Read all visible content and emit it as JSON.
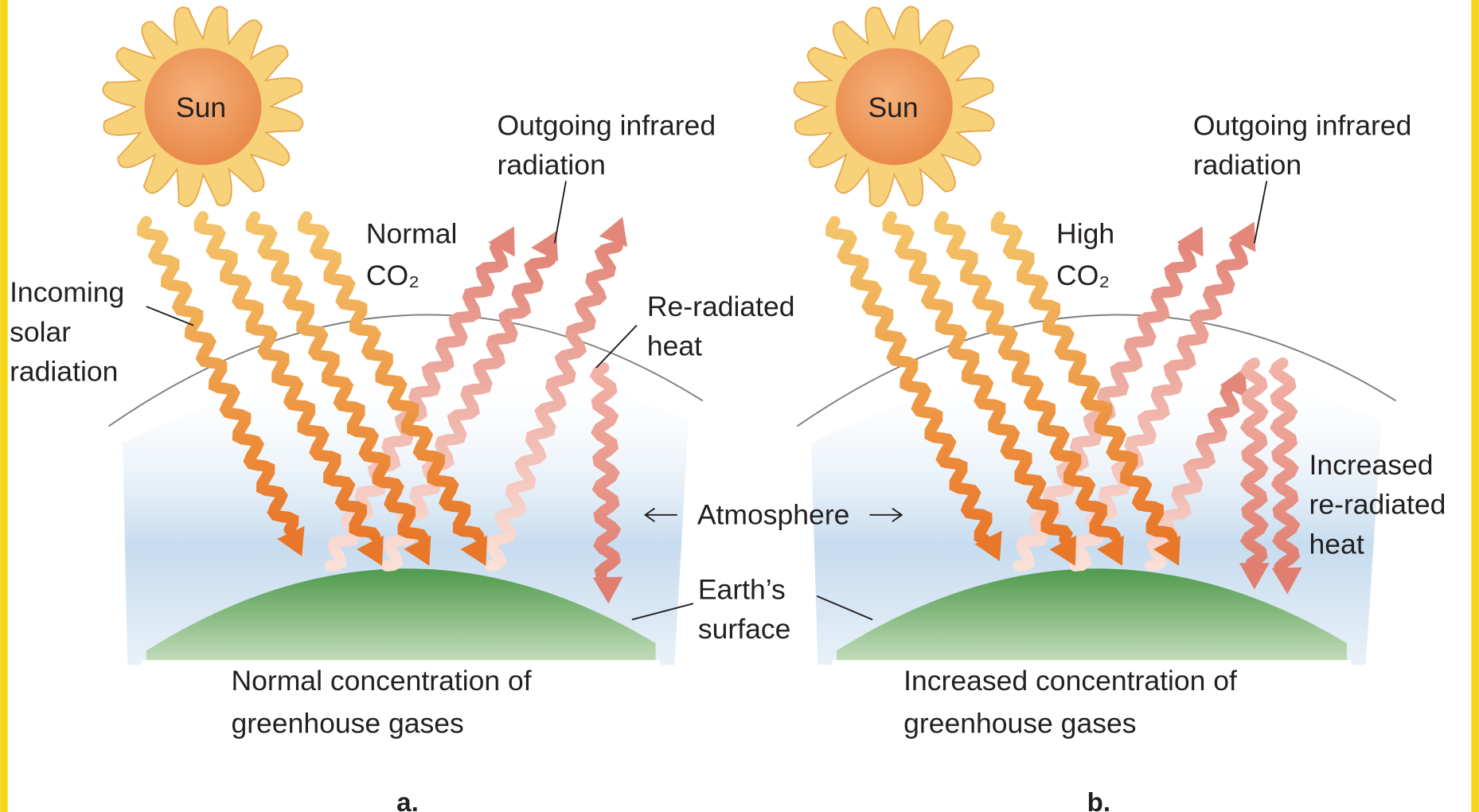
{
  "panels": [
    {
      "sun": "Sun",
      "outgoing": [
        "Outgoing infrared",
        "radiation"
      ],
      "co2": [
        "Normal",
        "CO₂"
      ],
      "reradiated": [
        "Re-radiated",
        "heat"
      ],
      "caption": [
        "Normal concentration of",
        "greenhouse gases"
      ],
      "label": "a."
    },
    {
      "sun": "Sun",
      "outgoing": [
        "Outgoing infrared",
        "radiation"
      ],
      "co2": [
        "High",
        "CO₂"
      ],
      "reradiated": [
        "Increased",
        "re-radiated",
        "heat"
      ],
      "caption": [
        "Increased concentration of",
        "greenhouse gases"
      ],
      "label": "b."
    }
  ],
  "incoming": [
    "Incoming",
    "solar",
    "radiation"
  ],
  "atmosphere": "Atmosphere",
  "earth": [
    "Earth’s",
    "surface"
  ]
}
